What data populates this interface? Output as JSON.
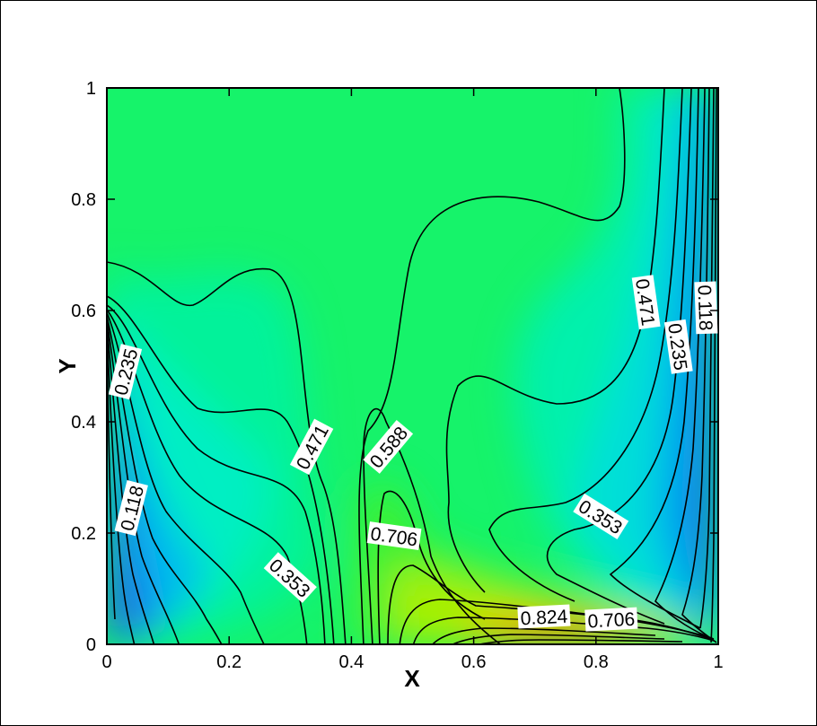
{
  "chart_data": {
    "type": "contour",
    "xlabel": "X",
    "ylabel": "Y",
    "xlim": [
      0,
      1
    ],
    "ylim": [
      0,
      1
    ],
    "xticks": [
      "0",
      "0.2",
      "0.4",
      "0.6",
      "0.8",
      "1"
    ],
    "yticks": [
      "0",
      "0.2",
      "0.4",
      "0.6",
      "0.8",
      "1"
    ],
    "grid": false,
    "contour_labels": [
      {
        "text": "0.235",
        "x": 0.03,
        "y": 0.49,
        "angle": 76
      },
      {
        "text": "0.118",
        "x": 0.04,
        "y": 0.245,
        "angle": 76
      },
      {
        "text": "0.471",
        "x": 0.335,
        "y": 0.355,
        "angle": 62
      },
      {
        "text": "0.588",
        "x": 0.46,
        "y": 0.355,
        "angle": 50
      },
      {
        "text": "0.706",
        "x": 0.47,
        "y": 0.195,
        "angle": -8
      },
      {
        "text": "0.353",
        "x": 0.3,
        "y": 0.12,
        "angle": -42
      },
      {
        "text": "0.824",
        "x": 0.715,
        "y": 0.05,
        "angle": 3
      },
      {
        "text": "0.706",
        "x": 0.825,
        "y": 0.045,
        "angle": 3
      },
      {
        "text": "0.353",
        "x": 0.808,
        "y": 0.23,
        "angle": -32
      },
      {
        "text": "0.471",
        "x": 0.882,
        "y": 0.615,
        "angle": -82
      },
      {
        "text": "0.235",
        "x": 0.935,
        "y": 0.535,
        "angle": -82
      },
      {
        "text": "0.118",
        "x": 0.98,
        "y": 0.605,
        "angle": -88
      }
    ]
  }
}
